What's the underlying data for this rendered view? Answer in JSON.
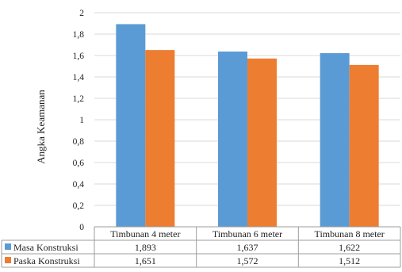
{
  "chart_data": {
    "type": "bar",
    "title": "",
    "xlabel": "",
    "ylabel": "Angka Keamanan",
    "ylim": [
      0,
      2
    ],
    "yticks": [
      "0",
      "0,2",
      "0,4",
      "0,6",
      "0,8",
      "1",
      "1,2",
      "1,4",
      "1,6",
      "1,8",
      "2"
    ],
    "categories": [
      "Timbunan 4 meter",
      "Timbunan 6 meter",
      "Timbunan 8 meter"
    ],
    "grid": true,
    "legend": "data table below chart",
    "series": [
      {
        "name": "Masa Konstruksi",
        "color": "#5b9bd5",
        "values": [
          1.893,
          1.637,
          1.622
        ],
        "labels": [
          "1,893",
          "1,637",
          "1,622"
        ]
      },
      {
        "name": "Paska Konstruksi",
        "color": "#ed7d31",
        "values": [
          1.651,
          1.572,
          1.512
        ],
        "labels": [
          "1,651",
          "1,572",
          "1,512"
        ]
      }
    ]
  }
}
